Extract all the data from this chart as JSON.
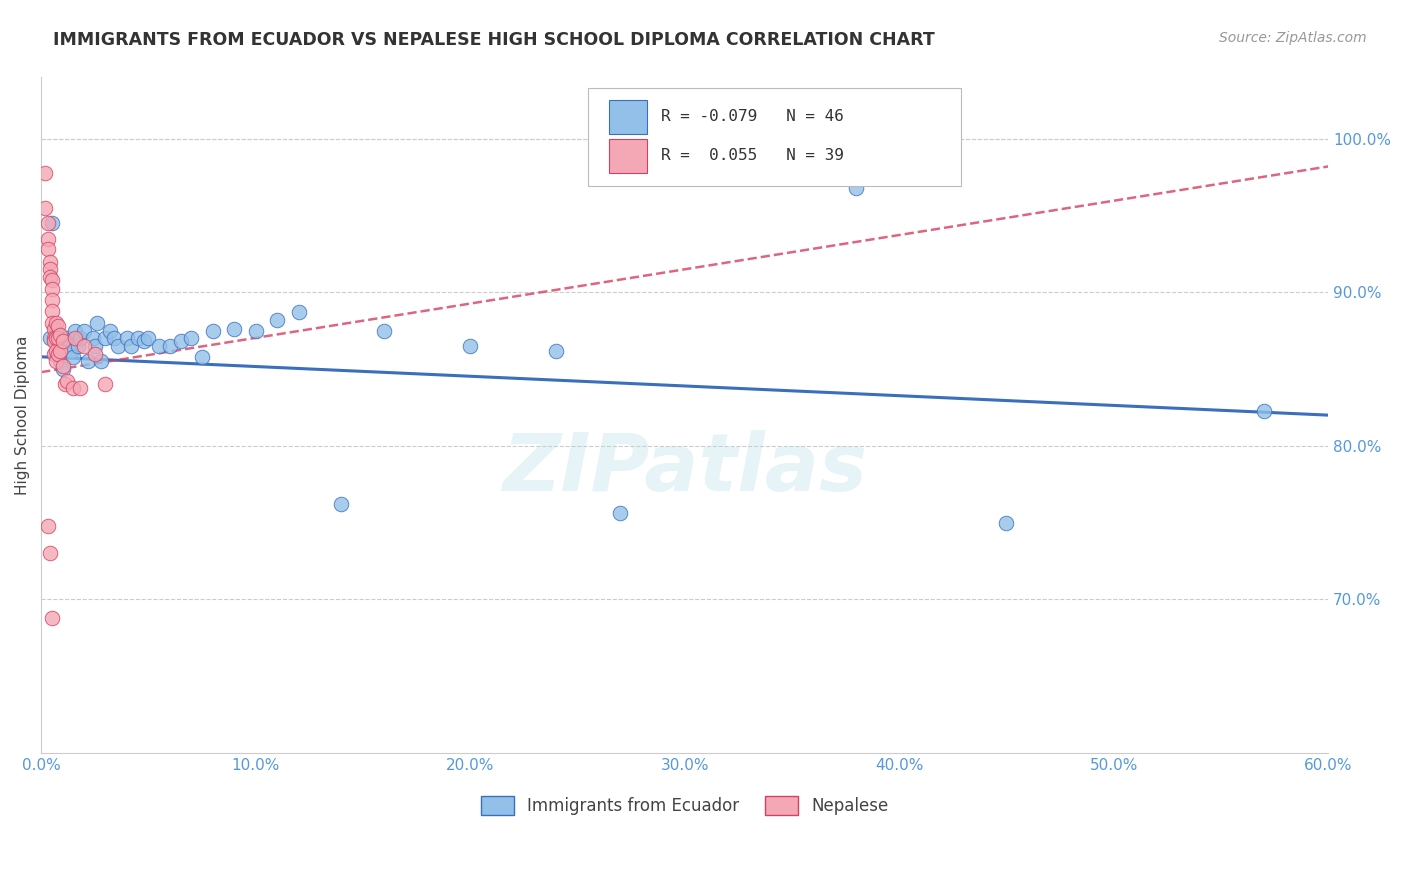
{
  "title": "IMMIGRANTS FROM ECUADOR VS NEPALESE HIGH SCHOOL DIPLOMA CORRELATION CHART",
  "source": "Source: ZipAtlas.com",
  "xlabel_label": "Immigrants from Ecuador",
  "ylabel_label": "High School Diploma",
  "legend_label1": "Immigrants from Ecuador",
  "legend_label2": "Nepalese",
  "R1": -0.079,
  "N1": 46,
  "R2": 0.055,
  "N2": 39,
  "color_blue": "#92c0e8",
  "color_pink": "#f4a7b5",
  "trendline_blue": "#3a6fbe",
  "trendline_pink": "#d44060",
  "xlim": [
    0.0,
    0.6
  ],
  "ylim": [
    0.6,
    1.04
  ],
  "yticks": [
    0.7,
    0.8,
    0.9,
    1.0
  ],
  "xticks": [
    0.0,
    0.1,
    0.2,
    0.3,
    0.4,
    0.5,
    0.6
  ],
  "watermark": "ZIPatlas",
  "blue_x": [
    0.004,
    0.005,
    0.007,
    0.008,
    0.009,
    0.01,
    0.012,
    0.013,
    0.014,
    0.015,
    0.016,
    0.017,
    0.018,
    0.02,
    0.022,
    0.024,
    0.025,
    0.026,
    0.028,
    0.03,
    0.032,
    0.034,
    0.036,
    0.04,
    0.042,
    0.045,
    0.048,
    0.05,
    0.055,
    0.06,
    0.065,
    0.07,
    0.075,
    0.08,
    0.09,
    0.1,
    0.11,
    0.12,
    0.14,
    0.16,
    0.2,
    0.24,
    0.27,
    0.38,
    0.45,
    0.57
  ],
  "blue_y": [
    0.87,
    0.945,
    0.875,
    0.86,
    0.855,
    0.85,
    0.87,
    0.865,
    0.862,
    0.858,
    0.875,
    0.865,
    0.87,
    0.875,
    0.855,
    0.87,
    0.865,
    0.88,
    0.855,
    0.87,
    0.875,
    0.87,
    0.865,
    0.87,
    0.865,
    0.87,
    0.868,
    0.87,
    0.865,
    0.865,
    0.868,
    0.87,
    0.858,
    0.875,
    0.876,
    0.875,
    0.882,
    0.887,
    0.762,
    0.875,
    0.865,
    0.862,
    0.756,
    0.968,
    0.75,
    0.823
  ],
  "pink_x": [
    0.002,
    0.002,
    0.003,
    0.003,
    0.003,
    0.004,
    0.004,
    0.004,
    0.005,
    0.005,
    0.005,
    0.005,
    0.005,
    0.006,
    0.006,
    0.006,
    0.006,
    0.007,
    0.007,
    0.007,
    0.007,
    0.008,
    0.008,
    0.008,
    0.009,
    0.009,
    0.01,
    0.01,
    0.011,
    0.012,
    0.015,
    0.016,
    0.018,
    0.02,
    0.025,
    0.03,
    0.003,
    0.004,
    0.005
  ],
  "pink_y": [
    0.978,
    0.955,
    0.945,
    0.935,
    0.928,
    0.92,
    0.915,
    0.91,
    0.908,
    0.902,
    0.895,
    0.888,
    0.88,
    0.876,
    0.87,
    0.868,
    0.86,
    0.88,
    0.87,
    0.862,
    0.855,
    0.878,
    0.87,
    0.86,
    0.872,
    0.862,
    0.868,
    0.852,
    0.84,
    0.842,
    0.838,
    0.87,
    0.838,
    0.865,
    0.86,
    0.84,
    0.748,
    0.73,
    0.688
  ],
  "blue_trend_x": [
    0.0,
    0.6
  ],
  "blue_trend_y": [
    0.858,
    0.82
  ],
  "pink_trend_x": [
    0.0,
    0.6
  ],
  "pink_trend_y": [
    0.848,
    0.982
  ]
}
